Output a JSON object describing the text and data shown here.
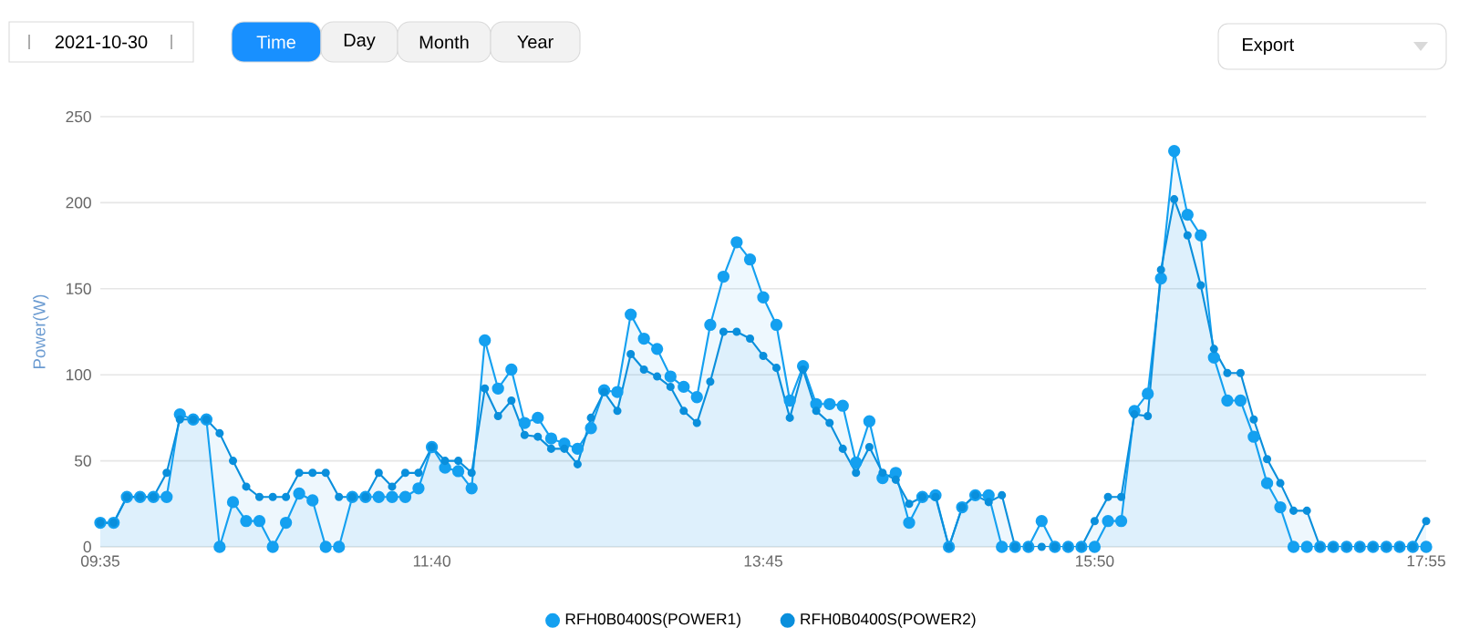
{
  "chart_data": {
    "type": "area",
    "ylabel": "Power(W)",
    "annotations": [
      "2021-10-30",
      "Time",
      "Day",
      "Month",
      "Year",
      "Export"
    ],
    "x": [
      9.583,
      9.667,
      9.75,
      9.833,
      9.917,
      10,
      10.083,
      10.167,
      10.25,
      10.333,
      10.417,
      10.5,
      10.583,
      10.667,
      10.75,
      10.833,
      10.917,
      11,
      11.083,
      11.167,
      11.25,
      11.333,
      11.417,
      11.5,
      11.583,
      11.667,
      11.75,
      11.833,
      11.917,
      12,
      12.083,
      12.167,
      12.25,
      12.333,
      12.417,
      12.5,
      12.583,
      12.667,
      12.75,
      12.833,
      12.917,
      13,
      13.083,
      13.167,
      13.25,
      13.333,
      13.417,
      13.5,
      13.583,
      13.667,
      13.75,
      13.833,
      13.917,
      14,
      14.083,
      14.167,
      14.25,
      14.333,
      14.417,
      14.5,
      14.583,
      14.667,
      14.75,
      14.833,
      14.917,
      15,
      15.083,
      15.167,
      15.25,
      15.333,
      15.417,
      15.5,
      15.583,
      15.667,
      15.75,
      15.833,
      15.917,
      16,
      16.083,
      16.167,
      16.25,
      16.333,
      16.417,
      16.5,
      16.583,
      16.667,
      16.75,
      16.833,
      16.917,
      17,
      17.083,
      17.167,
      17.25,
      17.333,
      17.417,
      17.5,
      17.583,
      17.667,
      17.75,
      17.833,
      17.917
    ],
    "series": [
      {
        "name": "RFH0B0400S(POWER1)",
        "color": "#14a0f0",
        "values": [
          14,
          14,
          29,
          29,
          29,
          29,
          77,
          74,
          74,
          0,
          26,
          15,
          15,
          0,
          14,
          31,
          27,
          0,
          0,
          29,
          29,
          29,
          29,
          29,
          34,
          58,
          46,
          44,
          34,
          120,
          92,
          103,
          72,
          75,
          63,
          60,
          57,
          69,
          91,
          90,
          135,
          121,
          115,
          99,
          93,
          87,
          129,
          157,
          177,
          167,
          145,
          129,
          85,
          105,
          83,
          83,
          82,
          49,
          73,
          40,
          43,
          14,
          29,
          30,
          0,
          23,
          30,
          30,
          0,
          0,
          0,
          15,
          0,
          0,
          0,
          0,
          15,
          15,
          79,
          89,
          156,
          230,
          193,
          181,
          110,
          85,
          85,
          64,
          37,
          23,
          0,
          0,
          0,
          0,
          0,
          0,
          0,
          0,
          0,
          0,
          0
        ]
      },
      {
        "name": "RFH0B0400S(POWER2)",
        "color": "#0a8fdc",
        "values": [
          14,
          14,
          29,
          29,
          29,
          43,
          74,
          74,
          74,
          66,
          50,
          35,
          29,
          29,
          29,
          43,
          43,
          43,
          29,
          29,
          29,
          43,
          35,
          43,
          43,
          58,
          50,
          50,
          43,
          92,
          76,
          85,
          65,
          64,
          57,
          57,
          48,
          75,
          90,
          79,
          112,
          103,
          99,
          93,
          79,
          72,
          96,
          125,
          125,
          121,
          111,
          104,
          75,
          103,
          79,
          72,
          57,
          43,
          58,
          43,
          39,
          25,
          29,
          29,
          0,
          23,
          30,
          26,
          30,
          0,
          0,
          0,
          0,
          0,
          0,
          15,
          29,
          29,
          77,
          76,
          161,
          202,
          181,
          152,
          115,
          101,
          101,
          74,
          51,
          37,
          21,
          21,
          0,
          0,
          0,
          0,
          0,
          0,
          0,
          0,
          15
        ]
      }
    ],
    "xlim": [
      9.583,
      17.917
    ],
    "xticks": [
      {
        "value": 9.583,
        "label": "09:35"
      },
      {
        "value": 11.667,
        "label": "11:40"
      },
      {
        "value": 13.75,
        "label": "13:45"
      },
      {
        "value": 15.833,
        "label": "15:50"
      },
      {
        "value": 17.917,
        "label": "17:55"
      }
    ],
    "ylim": [
      0,
      250
    ],
    "yticks": [
      0,
      50,
      100,
      150,
      200,
      250
    ],
    "grid": "y",
    "legend": "bottom",
    "marker": "circle",
    "line_style": "solid"
  }
}
